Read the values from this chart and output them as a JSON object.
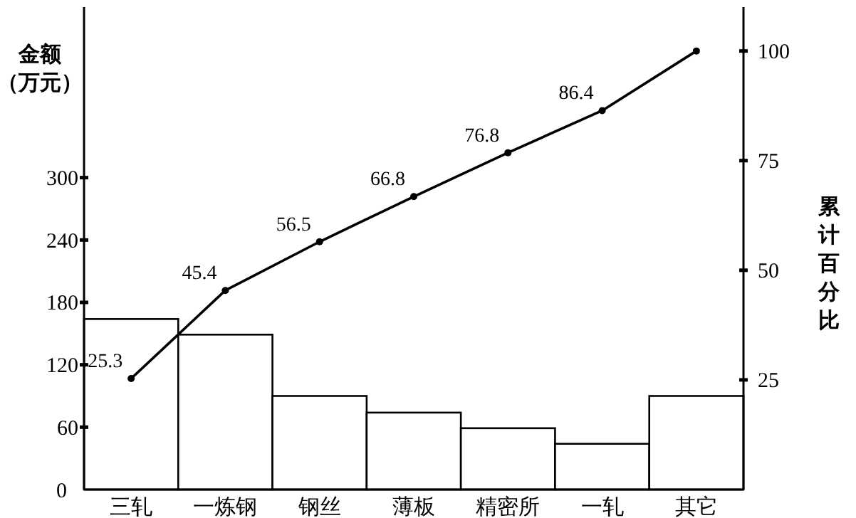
{
  "chart_data": {
    "type": "bar",
    "categories": [
      "三轧",
      "一炼钢",
      "钢丝",
      "薄板",
      "精密所",
      "一轧",
      "其它"
    ],
    "ylabel": "金额（万元）",
    "y2label": "累计百分比",
    "series": [
      {
        "color": "#ffffff",
        "values": [
          164,
          149,
          90,
          74,
          59,
          44,
          90
        ]
      },
      {
        "type": "line",
        "axis": "y2",
        "color": "#000000",
        "marker": "circle",
        "values": [
          25.3,
          45.4,
          56.5,
          66.8,
          76.8,
          86.4,
          100
        ],
        "value_labels": [
          "25.3",
          "45.4",
          "56.5",
          "66.8",
          "76.8",
          "86.4",
          null
        ]
      }
    ],
    "ylim": [
      0,
      464
    ],
    "yticks": [
      0,
      60,
      120,
      180,
      240,
      300
    ],
    "y2lim": [
      0,
      110
    ],
    "y2ticks": [
      25,
      50,
      75,
      100
    ],
    "grid": false,
    "legend": false
  }
}
